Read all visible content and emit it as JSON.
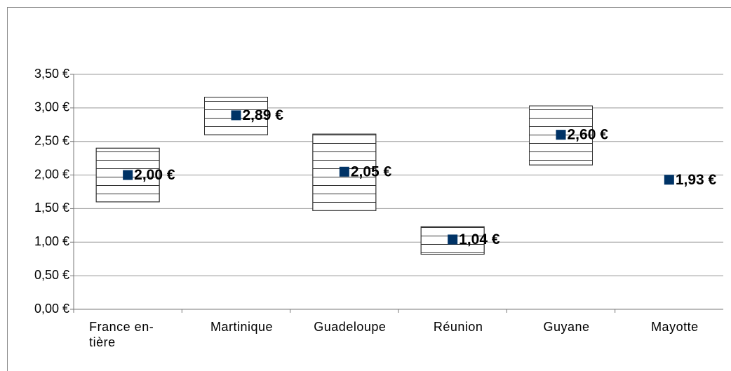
{
  "chart_data": {
    "type": "range",
    "categories": [
      "France en­tière",
      "Martinique",
      "Guadeloupe",
      "Réunion",
      "Guyane",
      "Mayotte"
    ],
    "values": [
      2.0,
      2.89,
      2.05,
      1.04,
      2.6,
      1.93
    ],
    "value_labels": [
      "2,00 €",
      "2,89 €",
      "2,05 €",
      "1,04 €",
      "2,60 €",
      "1,93 €"
    ],
    "low": [
      1.6,
      2.6,
      1.47,
      0.82,
      2.15,
      null
    ],
    "high": [
      2.4,
      3.16,
      2.61,
      1.23,
      3.03,
      null
    ],
    "color": "#003366",
    "ylim": [
      0,
      3.5
    ],
    "yticks": [
      {
        "value": 0,
        "label": "0,00 €"
      },
      {
        "value": 0.5,
        "label": "0,50 €"
      },
      {
        "value": 1,
        "label": "1,00 €"
      },
      {
        "value": 1.5,
        "label": "1,50 €"
      },
      {
        "value": 2,
        "label": "2,00 €"
      },
      {
        "value": 2.5,
        "label": "2,50 €"
      },
      {
        "value": 3,
        "label": "3,00 €"
      },
      {
        "value": 3.5,
        "label": "3,50 €"
      }
    ],
    "grid": true
  }
}
